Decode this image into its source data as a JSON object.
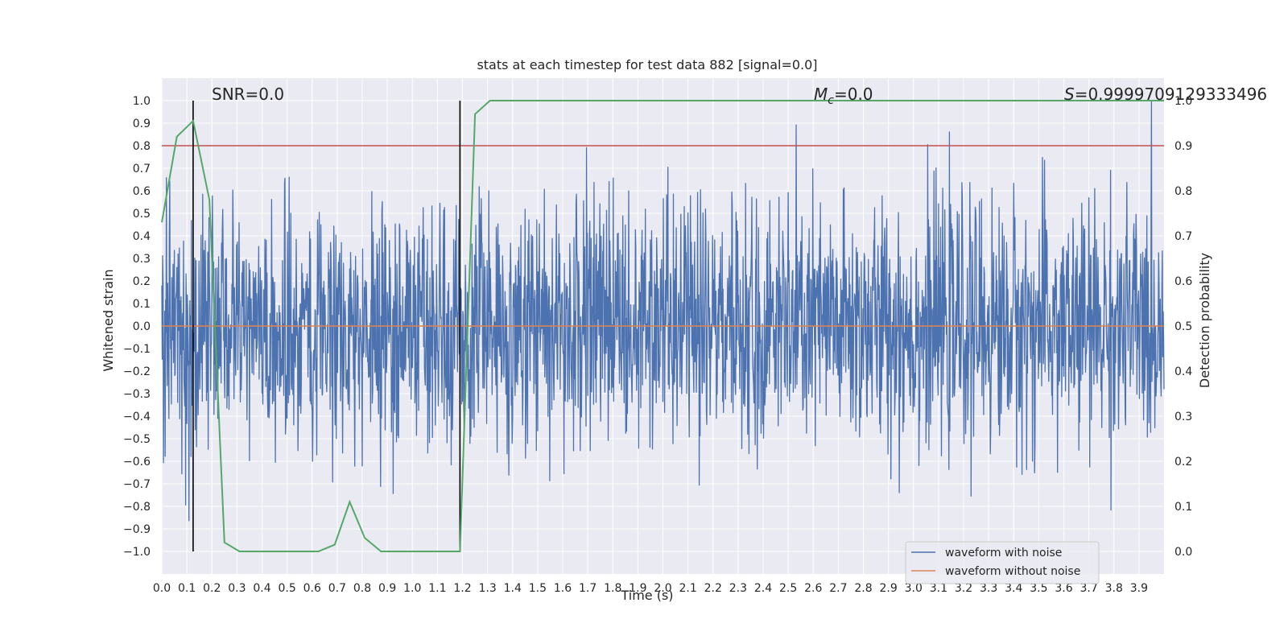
{
  "chart_data": {
    "type": "line",
    "title": "stats at each timestep for test data 882 [signal=0.0]",
    "xlabel": "Time (s)",
    "ylabel": "Whitened strain",
    "ylabel_right": "Detection probability",
    "xlim": [
      0.0,
      4.0
    ],
    "ylim": [
      -1.1,
      1.1
    ],
    "ylim_right": [
      -0.05,
      1.05
    ],
    "x_ticks": [
      "0.0",
      "0.1",
      "0.2",
      "0.3",
      "0.4",
      "0.5",
      "0.6",
      "0.7",
      "0.8",
      "0.9",
      "1.0",
      "1.1",
      "1.2",
      "1.3",
      "1.4",
      "1.5",
      "1.6",
      "1.7",
      "1.8",
      "1.9",
      "2.0",
      "2.1",
      "2.2",
      "2.3",
      "2.4",
      "2.5",
      "2.6",
      "2.7",
      "2.8",
      "2.9",
      "3.0",
      "3.1",
      "3.2",
      "3.3",
      "3.4",
      "3.5",
      "3.6",
      "3.7",
      "3.8",
      "3.9"
    ],
    "y_ticks": [
      "1.0",
      "0.9",
      "0.8",
      "0.7",
      "0.6",
      "0.5",
      "0.4",
      "0.3",
      "0.2",
      "0.1",
      "0.0",
      "−0.1",
      "−0.2",
      "−0.3",
      "−0.4",
      "−0.5",
      "−0.6",
      "−0.7",
      "−0.8",
      "−0.9",
      "−1.0"
    ],
    "y_right_ticks": [
      "1.0",
      "0.9",
      "0.8",
      "0.7",
      "0.6",
      "0.5",
      "0.4",
      "0.3",
      "0.2",
      "0.1",
      "0.0"
    ],
    "grid": true,
    "legend_position": "lower-right",
    "annotations": {
      "snr": "SNR=0.0",
      "mc_symbol": "M",
      "mc_sub": "c",
      "mc_value": "=0.0",
      "s_symbol": "S",
      "s_value": "=0.9999709129333496"
    },
    "series": [
      {
        "name": "waveform with noise",
        "color": "#4c72b0",
        "axis": "left",
        "kind": "noise",
        "amplitude_range": [
          -1.0,
          1.0
        ]
      },
      {
        "name": "waveform without noise",
        "color": "#dd8452",
        "axis": "left",
        "kind": "flat",
        "value": 0.0
      }
    ],
    "detection_probability": {
      "color": "#55a868",
      "axis": "right",
      "x": [
        0.0,
        0.06,
        0.125,
        0.19,
        0.25,
        0.31,
        0.375,
        0.44,
        0.5,
        0.56,
        0.625,
        0.69,
        0.75,
        0.81,
        0.875,
        0.94,
        1.0,
        1.06,
        1.125,
        1.19,
        1.25,
        1.31,
        1.375,
        1.5,
        2.0,
        3.0,
        4.0
      ],
      "y": [
        0.73,
        0.92,
        0.955,
        0.78,
        0.02,
        0.0,
        0.0,
        0.0,
        0.0,
        0.0,
        0.0,
        0.015,
        0.11,
        0.03,
        0.0,
        0.0,
        0.0,
        0.0,
        0.0,
        0.0,
        0.97,
        1.0,
        1.0,
        1.0,
        1.0,
        1.0,
        1.0
      ]
    },
    "threshold_line": {
      "value": 0.9,
      "axis": "right",
      "color": "#c44e52"
    },
    "vertical_lines": [
      {
        "x": 0.125,
        "color": "#000000"
      },
      {
        "x": 1.19,
        "color": "#000000"
      }
    ]
  },
  "colors": {
    "plot_background": "#eaeaf2",
    "grid": "#ffffff",
    "detection_line": "#55a868",
    "threshold": "#c44e52",
    "noise": "#4c72b0",
    "clean": "#dd8452",
    "marker_lines": "#000000"
  }
}
